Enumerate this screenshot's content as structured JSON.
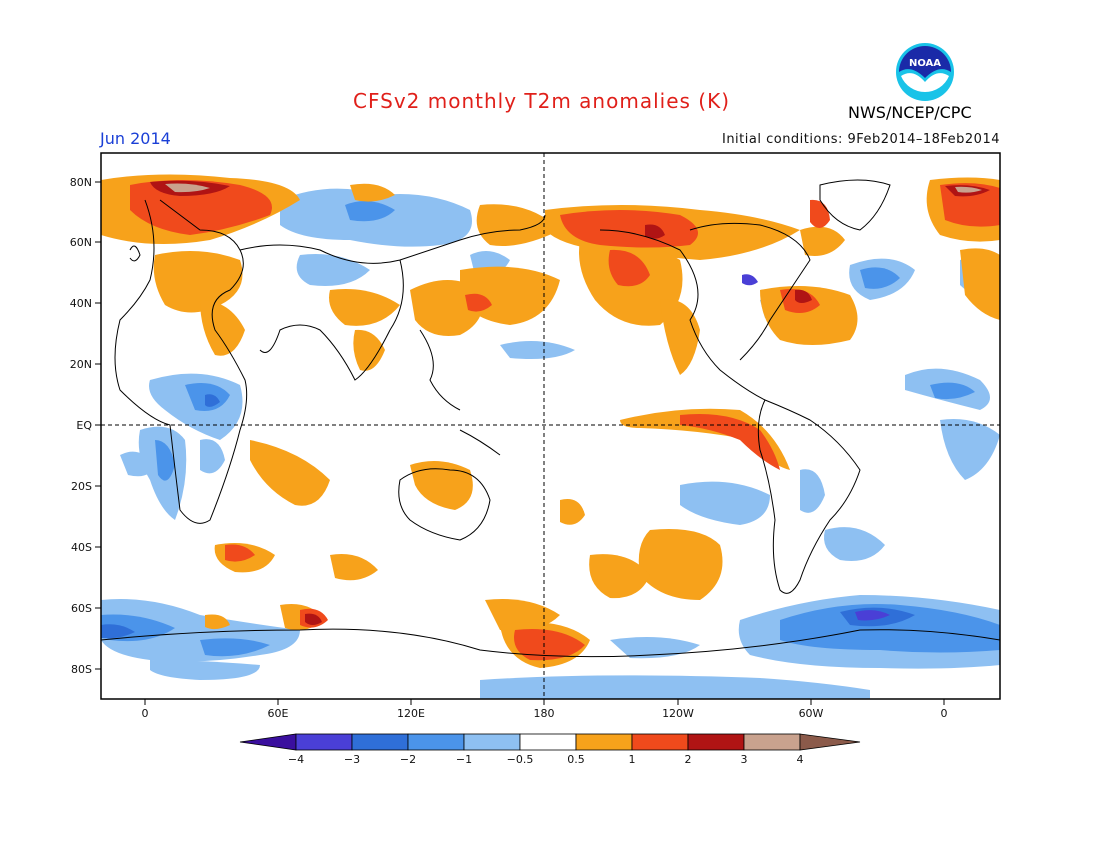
{
  "header": {
    "title": "CFSv2 monthly T2m anomalies (K)",
    "month": "Jun 2014",
    "initial_conditions": "Initial conditions: 9Feb2014–18Feb2014",
    "agency": "NWS/NCEP/CPC",
    "logo_text": "NOAA"
  },
  "map": {
    "y_ticks": [
      "80N",
      "60N",
      "40N",
      "20N",
      "EQ",
      "20S",
      "40S",
      "60S",
      "80S"
    ],
    "x_ticks": [
      "0",
      "60E",
      "120E",
      "180",
      "120W",
      "60W",
      "0"
    ],
    "reference_lines": [
      "equator",
      "dateline"
    ]
  },
  "colorbar": {
    "labels": [
      "−4",
      "−3",
      "−2",
      "−1",
      "−0.5",
      "0.5",
      "1",
      "2",
      "3",
      "4"
    ],
    "colors": [
      "#3a0f9e",
      "#4a3fd6",
      "#2f6fd8",
      "#4b94ea",
      "#8ec0f2",
      "#ffffff",
      "#f7a21b",
      "#f04a1c",
      "#b01414",
      "#c9a28e",
      "#8b5a4a"
    ]
  },
  "colors": {
    "warm_1": "#f7a21b",
    "warm_2": "#f04a1c",
    "warm_3": "#b01414",
    "warm_4": "#c9a28e",
    "cool_1": "#8ec0f2",
    "cool_2": "#4b94ea",
    "cool_3": "#2f6fd8",
    "cool_4": "#4a3fd6",
    "title": "#e0201a",
    "month": "#1a3fd6"
  }
}
